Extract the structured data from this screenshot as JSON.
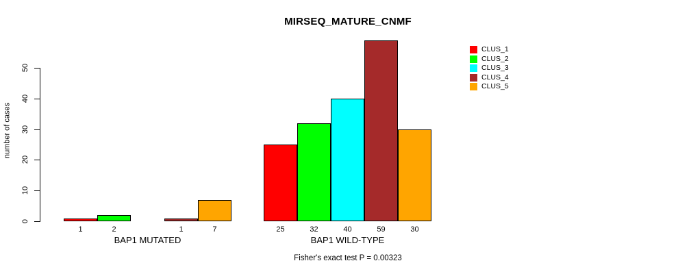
{
  "chart_data": {
    "type": "bar",
    "title": "MIRSEQ_MATURE_CNMF",
    "ylabel": "number of cases",
    "xlabel": "",
    "ylim": [
      0,
      59
    ],
    "yticks": [
      0,
      10,
      20,
      30,
      40,
      50
    ],
    "grid": false,
    "legend_position": "right",
    "categories": [
      "BAP1 MUTATED",
      "BAP1 WILD-TYPE"
    ],
    "series": [
      {
        "name": "CLUS_1",
        "color": "#FF0000",
        "values": [
          1,
          25
        ]
      },
      {
        "name": "CLUS_2",
        "color": "#00FF00",
        "values": [
          2,
          32
        ]
      },
      {
        "name": "CLUS_3",
        "color": "#00FFFF",
        "values": [
          0,
          40
        ]
      },
      {
        "name": "CLUS_4",
        "color": "#A52A2A",
        "values": [
          1,
          59
        ]
      },
      {
        "name": "CLUS_5",
        "color": "#FFA500",
        "values": [
          7,
          30
        ]
      }
    ],
    "bar_labels": [
      [
        "1",
        "2",
        "",
        "1",
        "7"
      ],
      [
        "25",
        "32",
        "40",
        "59",
        "30"
      ]
    ],
    "annotation": "Fisher's exact test P = 0.00323"
  }
}
